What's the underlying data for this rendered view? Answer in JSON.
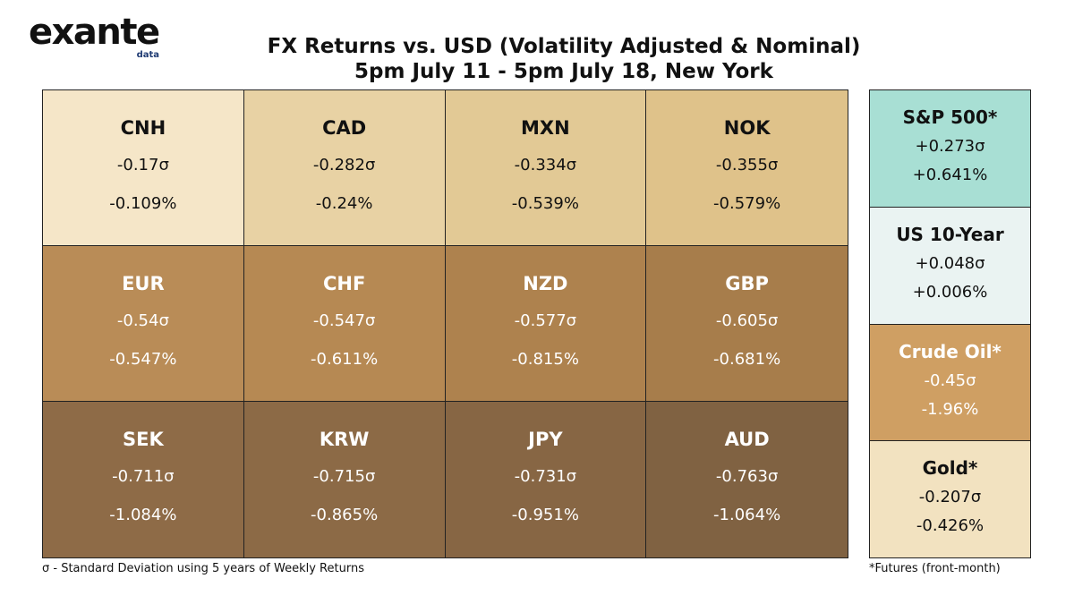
{
  "logo": {
    "word": "exante",
    "sub": "data"
  },
  "title": {
    "line1": "FX Returns vs. USD (Volatility Adjusted & Nominal)",
    "line2": "5pm July 11 - 5pm July 18, New York"
  },
  "chart_data": {
    "type": "table",
    "title": "FX Returns vs. USD (Volatility Adjusted & Nominal)",
    "subtitle": "5pm July 11 - 5pm July 18, New York",
    "fx": [
      {
        "ccy": "CNH",
        "vol": "-0.17σ",
        "nom": "-0.109%",
        "vol_value": -0.17,
        "nom_value": -0.109,
        "color": "#f5e6c8",
        "text": "dark-text"
      },
      {
        "ccy": "CAD",
        "vol": "-0.282σ",
        "nom": "-0.24%",
        "vol_value": -0.282,
        "nom_value": -0.24,
        "color": "#e8d2a4",
        "text": "dark-text"
      },
      {
        "ccy": "MXN",
        "vol": "-0.334σ",
        "nom": "-0.539%",
        "vol_value": -0.334,
        "nom_value": -0.539,
        "color": "#e2c995",
        "text": "dark-text"
      },
      {
        "ccy": "NOK",
        "vol": "-0.355σ",
        "nom": "-0.579%",
        "vol_value": -0.355,
        "nom_value": -0.579,
        "color": "#dfc28a",
        "text": "dark-text"
      },
      {
        "ccy": "EUR",
        "vol": "-0.54σ",
        "nom": "-0.547%",
        "vol_value": -0.54,
        "nom_value": -0.547,
        "color": "#b98c57",
        "text": "light-text"
      },
      {
        "ccy": "CHF",
        "vol": "-0.547σ",
        "nom": "-0.611%",
        "vol_value": -0.547,
        "nom_value": -0.611,
        "color": "#b68953",
        "text": "light-text"
      },
      {
        "ccy": "NZD",
        "vol": "-0.577σ",
        "nom": "-0.815%",
        "vol_value": -0.577,
        "nom_value": -0.815,
        "color": "#ae824e",
        "text": "light-text"
      },
      {
        "ccy": "GBP",
        "vol": "-0.605σ",
        "nom": "-0.681%",
        "vol_value": -0.605,
        "nom_value": -0.681,
        "color": "#a77d4b",
        "text": "light-text"
      },
      {
        "ccy": "SEK",
        "vol": "-0.711σ",
        "nom": "-1.084%",
        "vol_value": -0.711,
        "nom_value": -1.084,
        "color": "#8e6b47",
        "text": "light-text"
      },
      {
        "ccy": "KRW",
        "vol": "-0.715σ",
        "nom": "-0.865%",
        "vol_value": -0.715,
        "nom_value": -0.865,
        "color": "#8c6a46",
        "text": "light-text"
      },
      {
        "ccy": "JPY",
        "vol": "-0.731σ",
        "nom": "-0.951%",
        "vol_value": -0.731,
        "nom_value": -0.951,
        "color": "#876644",
        "text": "light-text"
      },
      {
        "ccy": "AUD",
        "vol": "-0.763σ",
        "nom": "-1.064%",
        "vol_value": -0.763,
        "nom_value": -1.064,
        "color": "#806242",
        "text": "light-text"
      }
    ],
    "other": [
      {
        "name": "S&P 500*",
        "vol": "+0.273σ",
        "nom": "+0.641%",
        "vol_value": 0.273,
        "nom_value": 0.641,
        "color": "#a8dfd4",
        "text": "dark-text"
      },
      {
        "name": "US 10-Year",
        "vol": "+0.048σ",
        "nom": "+0.006%",
        "vol_value": 0.048,
        "nom_value": 0.006,
        "color": "#eaf3f2",
        "text": "dark-text"
      },
      {
        "name": "Crude Oil*",
        "vol": "-0.45σ",
        "nom": "-1.96%",
        "vol_value": -0.45,
        "nom_value": -1.96,
        "color": "#cf9f63",
        "text": "light-text"
      },
      {
        "name": "Gold*",
        "vol": "-0.207σ",
        "nom": "-0.426%",
        "vol_value": -0.207,
        "nom_value": -0.426,
        "color": "#f2e2c0",
        "text": "dark-text"
      }
    ]
  },
  "footnotes": {
    "sigma": "σ - Standard Deviation using 5 years of Weekly Returns",
    "futures": "*Futures (front-month)"
  }
}
